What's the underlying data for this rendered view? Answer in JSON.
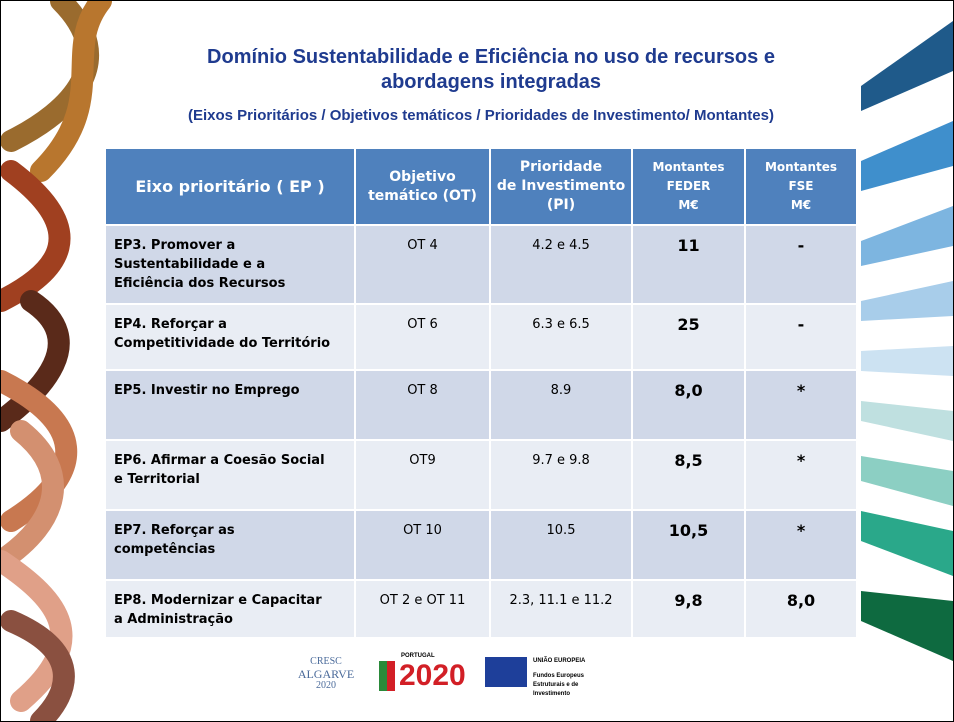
{
  "header": {
    "title": [
      "Domínio Sustentabilidade e Eficiência no uso de recursos e",
      "abordagens integradas"
    ],
    "subtitle": "(Eixos Prioritários / Objetivos temáticos / Prioridades de Investimento/ Montantes)"
  },
  "table": {
    "headers": [
      [
        "Eixo prioritário ( EP )"
      ],
      [
        "Objetivo",
        "temático (OT)"
      ],
      [
        "Prioridade",
        "de Investimento",
        "(PI)"
      ],
      [
        "Montantes",
        "FEDER",
        "M€"
      ],
      [
        "Montantes",
        "FSE",
        "M€"
      ]
    ],
    "rows": [
      [
        [
          "EP3.  Promover a",
          "Sustentabilidade e a",
          "Eficiência dos Recursos"
        ],
        "OT 4",
        "4.2 e 4.5",
        "11",
        "-"
      ],
      [
        [
          "EP4.  Reforçar a",
          "Competitividade do Território"
        ],
        "OT 6",
        "6.3 e 6.5",
        "25",
        "-"
      ],
      [
        [
          "EP5.  Investir no Emprego"
        ],
        "OT 8",
        "8.9",
        "8,0",
        "*"
      ],
      [
        [
          "EP6.  Afirmar a Coesão Social",
          "e Territorial"
        ],
        "OT9",
        "9.7 e 9.8",
        "8,5",
        "*"
      ],
      [
        [
          "EP7.  Reforçar as",
          "competências"
        ],
        "OT 10",
        "10.5",
        "10,5",
        "*"
      ],
      [
        [
          "EP8. Modernizar e Capacitar",
          "a Administração"
        ],
        "OT 2 e OT 11",
        "2.3, 11.1 e 11.2",
        "9,8",
        "8,0"
      ]
    ]
  },
  "logos": {
    "cresc": [
      "CRESC",
      "ALGARVE",
      "2020"
    ],
    "portugal": "PORTUGAL",
    "year": "2020",
    "eu": "UNIÃO EUROPEIA",
    "funds": [
      "Fundos Europeus",
      "Estruturais e de",
      "Investimento"
    ]
  }
}
